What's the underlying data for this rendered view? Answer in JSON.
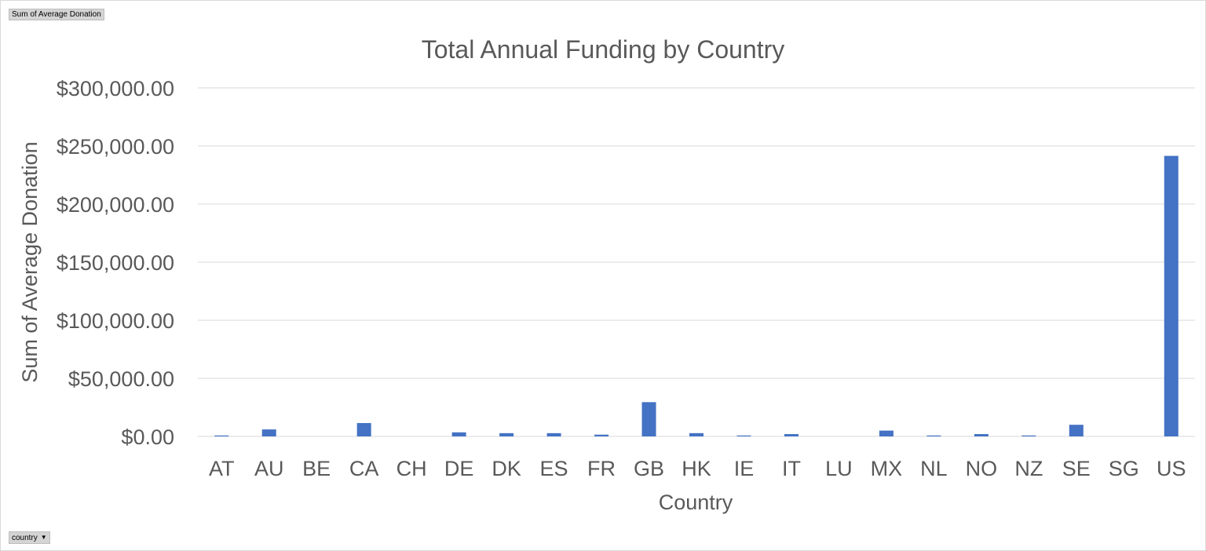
{
  "field_buttons": {
    "value_field": "Sum of Average Donation",
    "axis_field": "country",
    "axis_field_dropdown_icon": "caret-down-icon"
  },
  "colors": {
    "bar": "#4472c4",
    "gridline": "#d9d9d9",
    "text": "#595959"
  },
  "chart_data": {
    "type": "bar",
    "title": "Total Annual Funding by Country",
    "xlabel": "Country",
    "ylabel": "Sum of Average Donation",
    "ylim": [
      0,
      300000
    ],
    "yticks": [
      0,
      50000,
      100000,
      150000,
      200000,
      250000,
      300000
    ],
    "ytick_labels": [
      "$0.00",
      "$50,000.00",
      "$100,000.00",
      "$150,000.00",
      "$200,000.00",
      "$250,000.00",
      "$300,000.00"
    ],
    "grid": true,
    "legend": "none",
    "categories": [
      "AT",
      "AU",
      "BE",
      "CA",
      "CH",
      "DE",
      "DK",
      "ES",
      "FR",
      "GB",
      "HK",
      "IE",
      "IT",
      "LU",
      "MX",
      "NL",
      "NO",
      "NZ",
      "SE",
      "SG",
      "US"
    ],
    "values": [
      800,
      6000,
      0,
      11500,
      0,
      3500,
      2800,
      2800,
      1500,
      29500,
      2800,
      800,
      2000,
      0,
      5000,
      800,
      2000,
      800,
      10000,
      0,
      241500
    ]
  }
}
